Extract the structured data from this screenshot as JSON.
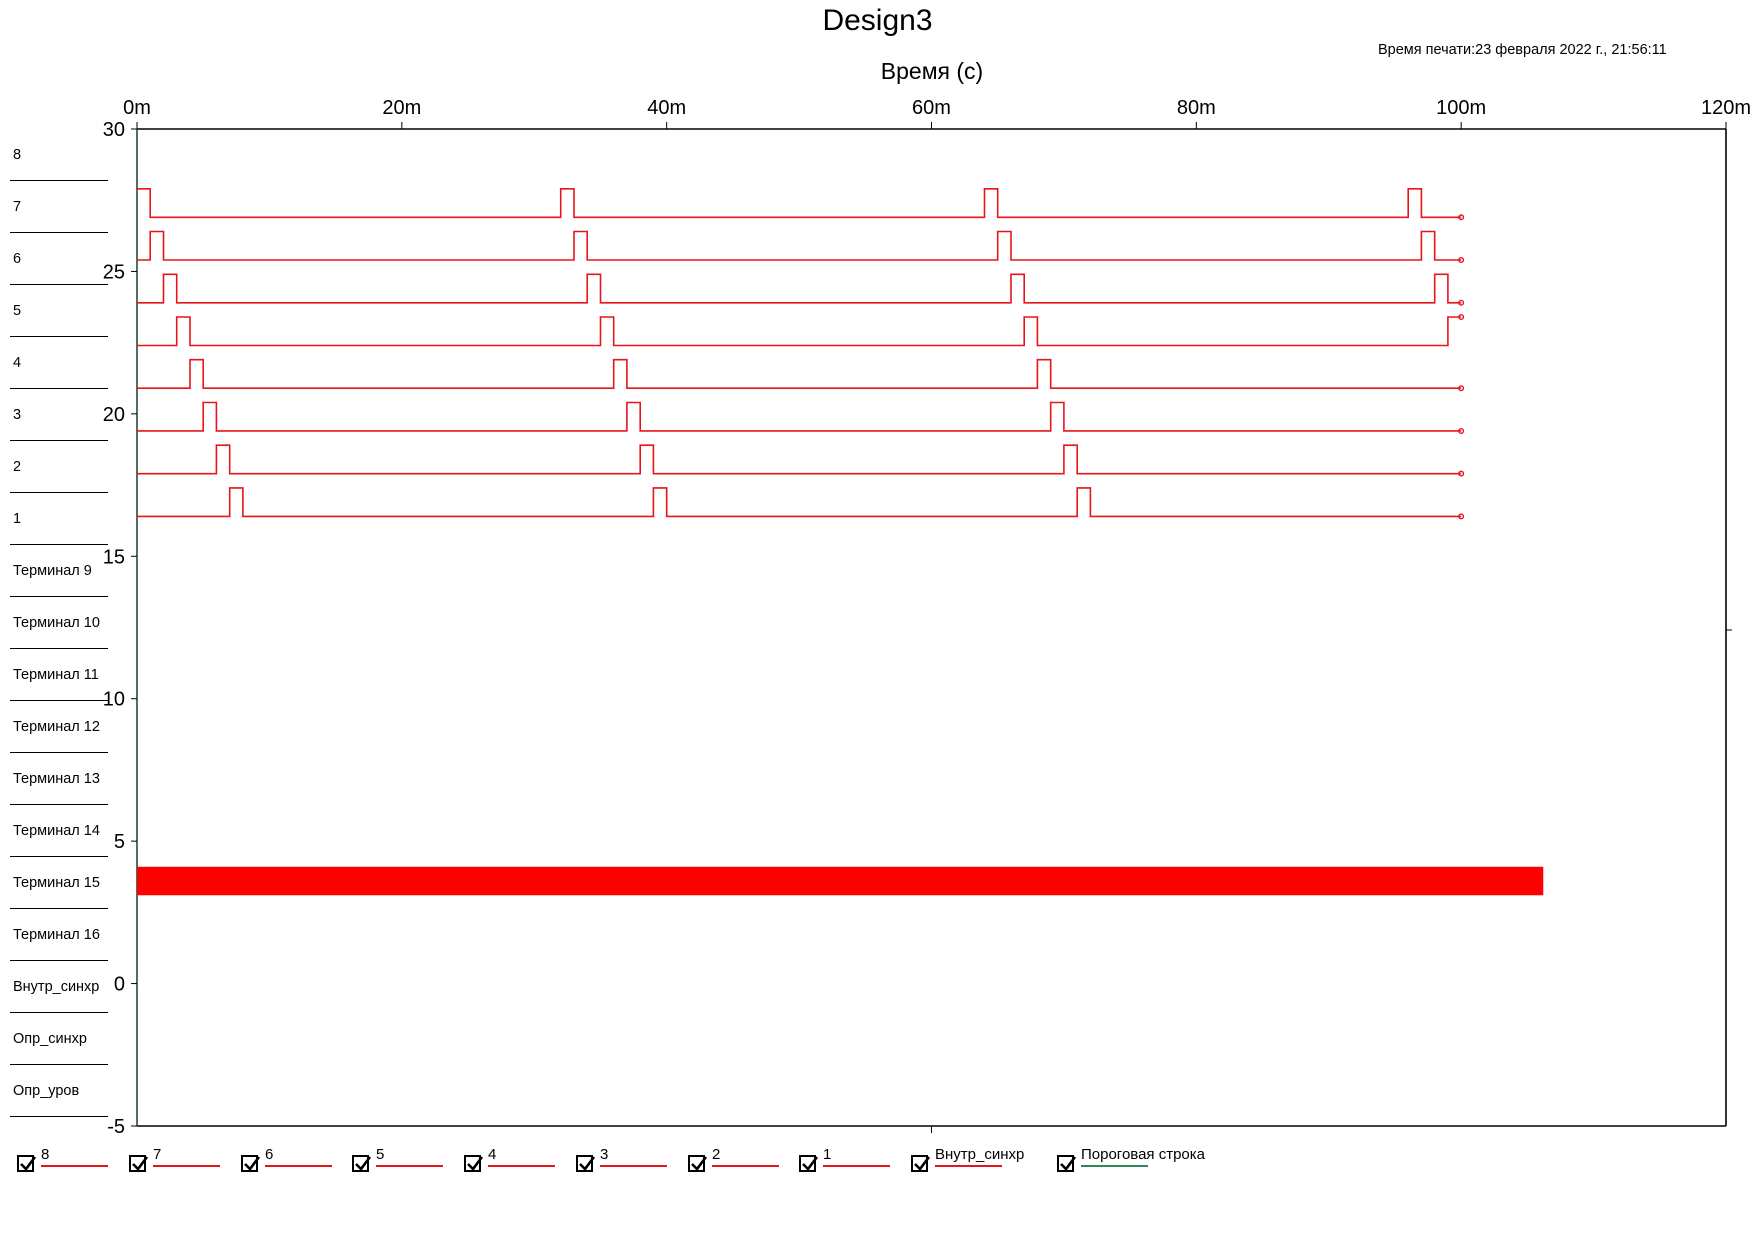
{
  "header": {
    "title": "Design3",
    "print_time": "Время печати:23 февраля 2022 г., 21:56:11"
  },
  "row_labels": [
    "8",
    "7",
    "6",
    "5",
    "4",
    "3",
    "2",
    "1",
    "Терминал 9",
    "Терминал 10",
    "Терминал 11",
    "Терминал 12",
    "Терминал 13",
    "Терминал 14",
    "Терминал 15",
    "Терминал 16",
    "Внутр_синхр",
    "Опр_синхр",
    "Опр_уров"
  ],
  "legend": [
    {
      "name": "8",
      "checked": true,
      "color": "#e8141c"
    },
    {
      "name": "7",
      "checked": true,
      "color": "#e8141c"
    },
    {
      "name": "6",
      "checked": true,
      "color": "#e8141c"
    },
    {
      "name": "5",
      "checked": true,
      "color": "#e8141c"
    },
    {
      "name": "4",
      "checked": true,
      "color": "#e8141c"
    },
    {
      "name": "3",
      "checked": true,
      "color": "#e8141c"
    },
    {
      "name": "2",
      "checked": true,
      "color": "#e8141c"
    },
    {
      "name": "1",
      "checked": true,
      "color": "#e8141c"
    },
    {
      "name": "Внутр_синхр",
      "checked": true,
      "color": "#e8141c"
    },
    {
      "name": "Пороговая строка",
      "checked": true,
      "color": "#2a8a5a"
    }
  ],
  "chart_data": {
    "type": "line",
    "title": "Design3",
    "xlabel": "Время (c)",
    "ylabel": "",
    "xlim": [
      0,
      0.12
    ],
    "ylim": [
      -5,
      30
    ],
    "x_ticks": [
      0,
      0.02,
      0.04,
      0.06,
      0.08,
      0.1,
      0.12
    ],
    "x_tick_labels": [
      "0m",
      "20m",
      "40m",
      "60m",
      "80m",
      "100m",
      "120m"
    ],
    "y_ticks": [
      30,
      25,
      20,
      15,
      10,
      5,
      0,
      -5
    ],
    "y_tick_labels": [
      "30",
      "25",
      "20",
      "15",
      "10",
      "5",
      "0",
      "-5"
    ],
    "signal_color": "#e8141c",
    "pulse_width": 0.001,
    "pulse_period": 0.032,
    "pulse_amplitude": 1,
    "end_time": 0.1,
    "series": [
      {
        "name": "8",
        "base": 26.9,
        "pulse_starts": [
          0,
          0.032,
          0.064,
          0.096
        ]
      },
      {
        "name": "7",
        "base": 25.4,
        "pulse_starts": [
          0.001,
          0.033,
          0.065,
          0.097
        ]
      },
      {
        "name": "6",
        "base": 23.9,
        "pulse_starts": [
          0.002,
          0.034,
          0.066,
          0.098
        ]
      },
      {
        "name": "5",
        "base": 22.4,
        "pulse_starts": [
          0.003,
          0.035,
          0.067,
          0.099
        ]
      },
      {
        "name": "4",
        "base": 20.9,
        "pulse_starts": [
          0.004,
          0.036,
          0.068
        ]
      },
      {
        "name": "3",
        "base": 19.4,
        "pulse_starts": [
          0.005,
          0.037,
          0.069
        ]
      },
      {
        "name": "2",
        "base": 17.9,
        "pulse_starts": [
          0.006,
          0.038,
          0.07
        ]
      },
      {
        "name": "1",
        "base": 16.4,
        "pulse_starts": [
          0.007,
          0.039,
          0.071
        ]
      }
    ],
    "band": {
      "name": "Внутр_синхр",
      "x": [
        0,
        0.1062
      ],
      "y": [
        3.1,
        4.1
      ],
      "color": "#ff0000"
    }
  }
}
